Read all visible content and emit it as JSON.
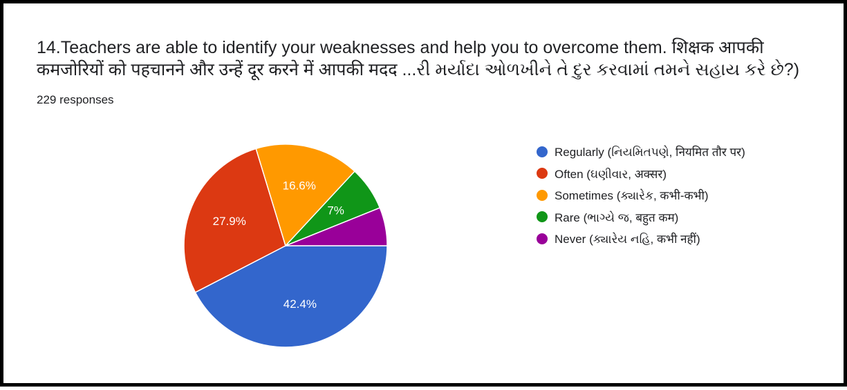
{
  "header": {
    "title_line1": "14.Teachers are able to identify your weaknesses and help you to overcome them.  शिक्षक आपकी",
    "title_line2": "कमजोरियों को पहचानने और उन्हें दूर करने में आपकी मदद ...રી મર્યાદા ઓળખીને તે દુર કરવામાં તમને સહાય કરે છે?)",
    "responses": "229 responses"
  },
  "chart_data": {
    "type": "pie",
    "title": "14.Teachers are able to identify your weaknesses and help you to overcome them.  शिक्षक आपकी कमजोरियों को पहचानने और उन्हें दूर करने में आपकी मदद ...રી મર્યાદા ઓળખીને તે દુર કરવામાં તમને સહાય કરે છે?)",
    "total_responses": 229,
    "legend_position": "right",
    "slices": [
      {
        "label": "Regularly (નિયમિતપણે, नियमित तौर पर)",
        "value": 42.4,
        "value_label": "42.4%",
        "color": "#3366cc"
      },
      {
        "label": "Often (ઘણીવાર, अक्सर)",
        "value": 27.9,
        "value_label": "27.9%",
        "color": "#dc3912"
      },
      {
        "label": "Sometimes (ક્યારેક, कभी-कभी)",
        "value": 16.6,
        "value_label": "16.6%",
        "color": "#ff9900"
      },
      {
        "label": "Rare (ભાગ્યે જ, बहुत कम)",
        "value": 7.0,
        "value_label": "7%",
        "color": "#109618"
      },
      {
        "label": "Never (ક્યારેય નહિ, कभी नहीं)",
        "value": 6.1,
        "value_label": "",
        "color": "#990099"
      }
    ]
  }
}
